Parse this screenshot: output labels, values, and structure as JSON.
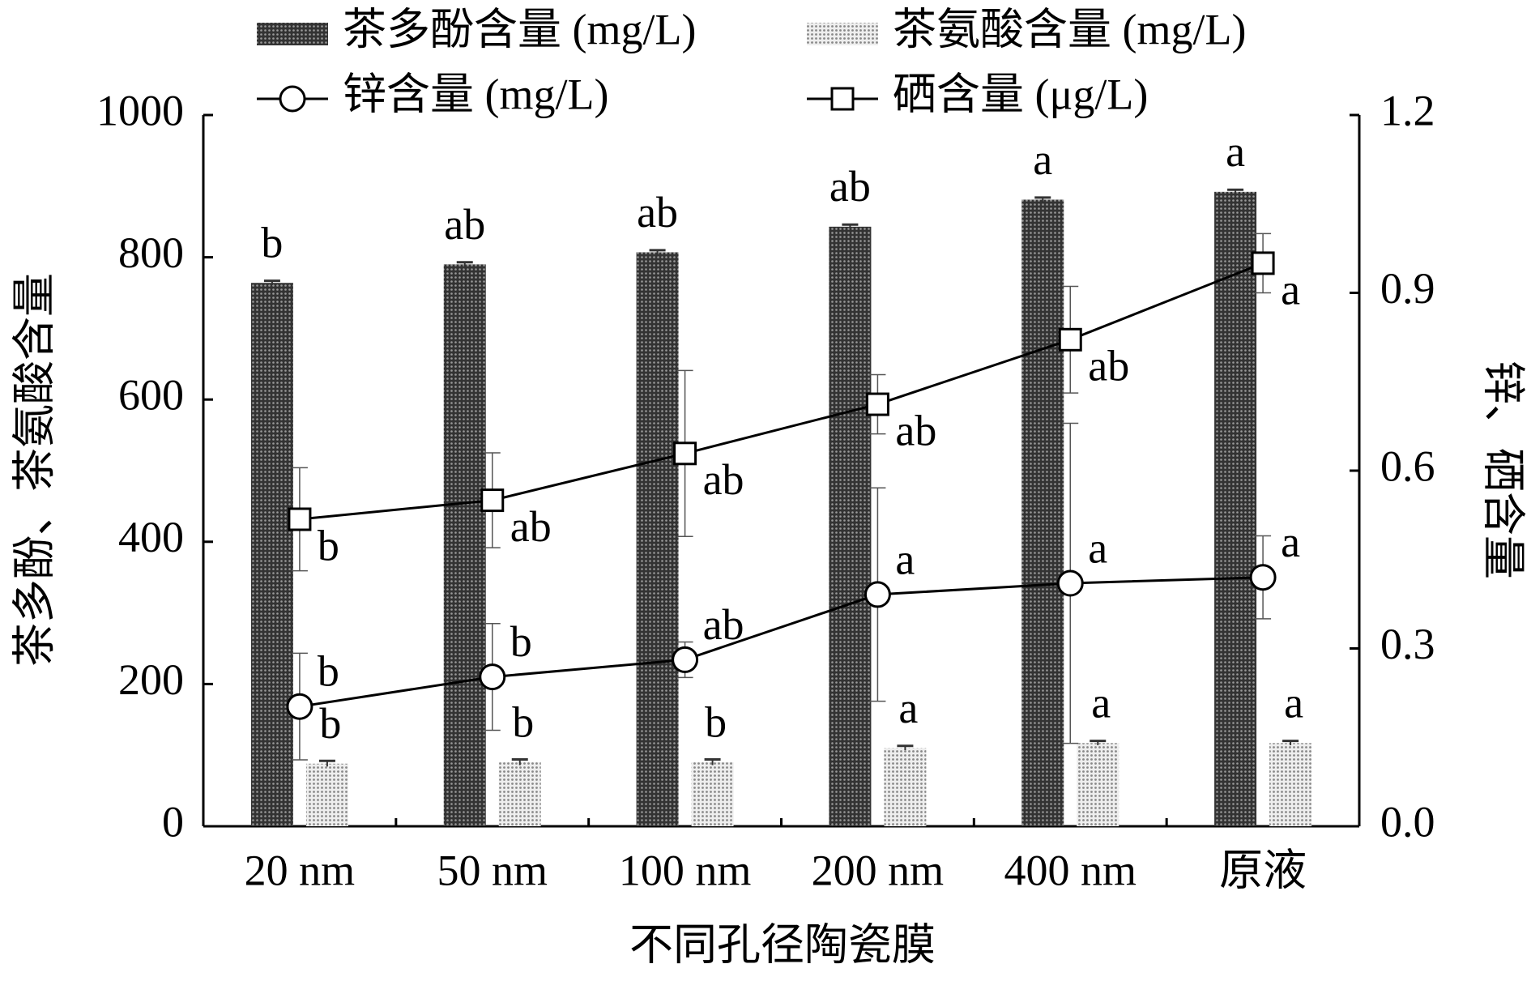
{
  "chart_data": {
    "type": "bar",
    "xlabel": "不同孔径陶瓷膜",
    "ylabel": "茶多酚、茶氨酸含量",
    "y2label": "锌、硒含量",
    "categories": [
      "20 nm",
      "50 nm",
      "100 nm",
      "200 nm",
      "400 nm",
      "原液"
    ],
    "ylim": [
      0,
      1000
    ],
    "yticks": [
      0,
      200,
      400,
      600,
      800,
      1000
    ],
    "y2lim": [
      0,
      1.2
    ],
    "y2ticks": [
      {
        "value": 0,
        "label": "0.0"
      },
      0.3,
      0.6,
      0.9,
      1.2
    ],
    "series": [
      {
        "name": "茶多酚含量 (mg/L)",
        "color": "#555555",
        "values": [
          764,
          790,
          807,
          843,
          881,
          892
        ],
        "errors": [
          3,
          3,
          3,
          3,
          3,
          3
        ],
        "labels": [
          "b",
          "ab",
          "ab",
          "ab",
          "a",
          "a"
        ]
      },
      {
        "name": "茶氨酸含量 (mg/L)",
        "color": "#bbbbbb",
        "values": [
          88,
          90,
          90,
          110,
          117,
          117
        ],
        "errors": [
          4,
          4,
          4,
          3,
          3,
          3
        ],
        "labels": [
          "b",
          "b",
          "b",
          "a",
          "a",
          "a"
        ]
      },
      {
        "name": "锌含量 (mg/L)",
        "color": "#000000",
        "axis": "y2",
        "marker": "circle",
        "values": [
          0.202,
          0.252,
          0.281,
          0.391,
          0.41,
          0.42
        ],
        "errors": [
          0.09,
          0.09,
          0.03,
          0.18,
          0.27,
          0.07
        ],
        "labels": [
          "b",
          "b",
          "ab",
          "a",
          "a",
          "a"
        ]
      },
      {
        "name": "硒含量 (μg/L)",
        "color": "#000000",
        "axis": "y2",
        "marker": "square",
        "values": [
          0.518,
          0.55,
          0.629,
          0.712,
          0.821,
          0.95
        ],
        "errors": [
          0.087,
          0.08,
          0.14,
          0.05,
          0.09,
          0.05
        ],
        "labels": [
          "b",
          "ab",
          "ab",
          "ab",
          "ab",
          "a"
        ]
      }
    ]
  }
}
